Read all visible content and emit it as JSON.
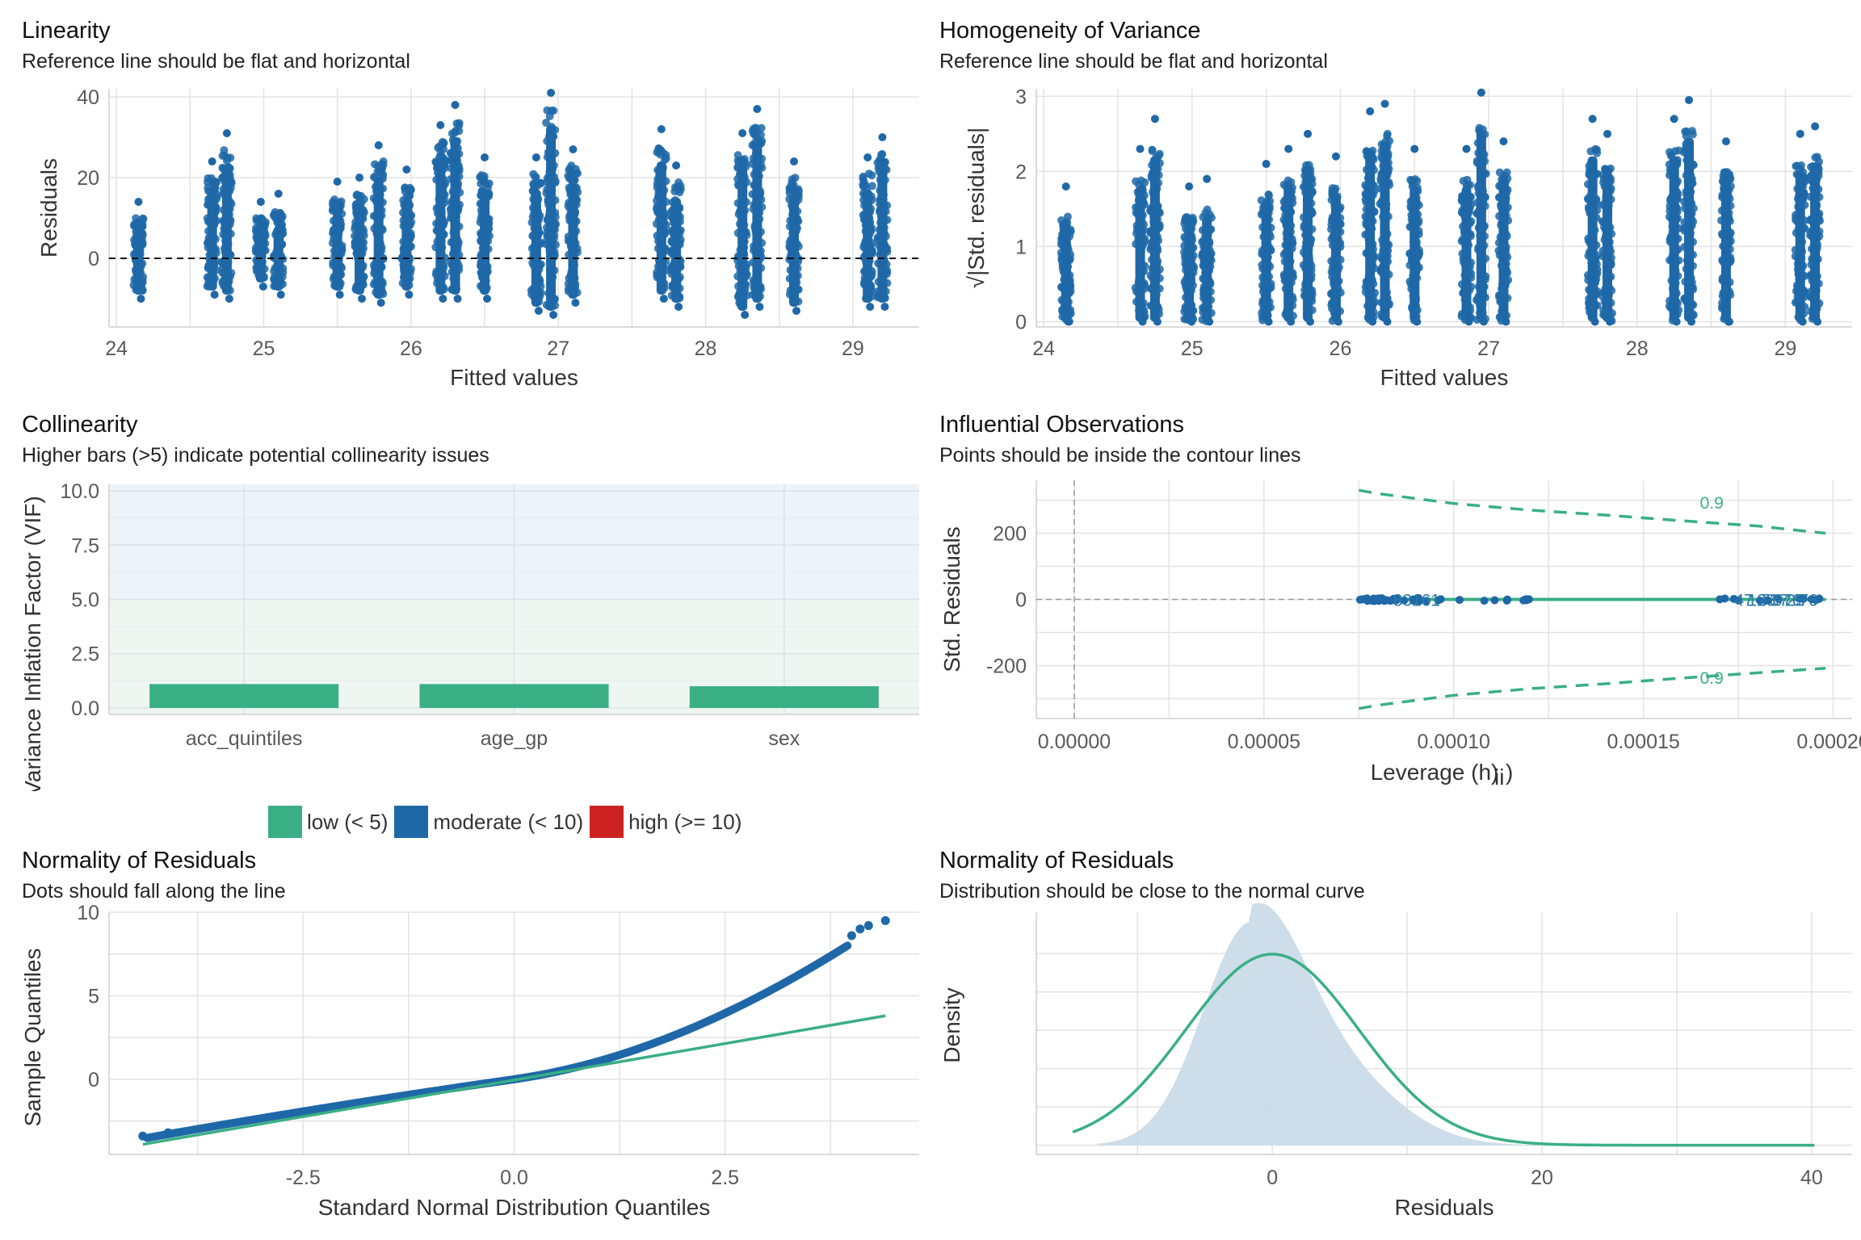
{
  "panels": {
    "linearity": {
      "title": "Linearity",
      "subtitle": "Reference line should be flat and horizontal"
    },
    "homogeneity": {
      "title": "Homogeneity of Variance",
      "subtitle": "Reference line should be flat and horizontal"
    },
    "collinearity": {
      "title": "Collinearity",
      "subtitle": "Higher bars (>5) indicate potential collinearity issues"
    },
    "influential": {
      "title": "Influential Observations",
      "subtitle": "Points should be inside the contour lines"
    },
    "qq": {
      "title": "Normality of Residuals",
      "subtitle": "Dots should fall along the line"
    },
    "density": {
      "title": "Normality of Residuals",
      "subtitle": "Distribution should be close to the normal curve"
    }
  },
  "colors": {
    "points": "#1f68a8",
    "green": "#3aaf85",
    "red": "#cc2222",
    "vif_bg": "#eef3f8",
    "density_fill": "#c9d9e8"
  },
  "legend": {
    "items": [
      {
        "label": "low (< 5)",
        "color": "#3aaf85"
      },
      {
        "label": "moderate (< 10)",
        "color": "#1f68a8"
      },
      {
        "label": "high (>= 10)",
        "color": "#cc2222"
      }
    ]
  },
  "chart_data": [
    {
      "id": "linearity",
      "type": "scatter",
      "xlabel": "Fitted values",
      "ylabel": "Residuals",
      "xlim": [
        23.95,
        29.45
      ],
      "ylim": [
        -17,
        42
      ],
      "xticks": [
        "24",
        "25",
        "26",
        "27",
        "28",
        "29"
      ],
      "yticks": [
        "0",
        "20",
        "40"
      ],
      "reference_line": {
        "y": 0,
        "style": "dashed"
      },
      "columns": [
        {
          "x": 24.15,
          "lo": -10,
          "hi": 14
        },
        {
          "x": 24.65,
          "lo": -9,
          "hi": 24
        },
        {
          "x": 24.75,
          "lo": -10,
          "hi": 31
        },
        {
          "x": 24.98,
          "lo": -7,
          "hi": 14
        },
        {
          "x": 25.1,
          "lo": -9,
          "hi": 16
        },
        {
          "x": 25.5,
          "lo": -9,
          "hi": 19
        },
        {
          "x": 25.65,
          "lo": -10,
          "hi": 20
        },
        {
          "x": 25.78,
          "lo": -11,
          "hi": 28
        },
        {
          "x": 25.97,
          "lo": -9,
          "hi": 22
        },
        {
          "x": 26.2,
          "lo": -10,
          "hi": 33
        },
        {
          "x": 26.3,
          "lo": -10,
          "hi": 38
        },
        {
          "x": 26.5,
          "lo": -10,
          "hi": 25
        },
        {
          "x": 26.85,
          "lo": -13,
          "hi": 25
        },
        {
          "x": 26.95,
          "lo": -14,
          "hi": 41
        },
        {
          "x": 27.1,
          "lo": -11,
          "hi": 27
        },
        {
          "x": 27.7,
          "lo": -10,
          "hi": 32
        },
        {
          "x": 27.8,
          "lo": -12,
          "hi": 23
        },
        {
          "x": 28.25,
          "lo": -14,
          "hi": 31
        },
        {
          "x": 28.35,
          "lo": -12,
          "hi": 37
        },
        {
          "x": 28.6,
          "lo": -13,
          "hi": 24
        },
        {
          "x": 29.1,
          "lo": -12,
          "hi": 25
        },
        {
          "x": 29.2,
          "lo": -12,
          "hi": 30
        }
      ]
    },
    {
      "id": "homogeneity",
      "type": "scatter",
      "xlabel": "Fitted values",
      "ylabel": "√|Std. residuals|",
      "xlim": [
        23.95,
        29.45
      ],
      "ylim": [
        -0.07,
        3.1
      ],
      "xticks": [
        "24",
        "25",
        "26",
        "27",
        "28",
        "29"
      ],
      "yticks": [
        "0",
        "1",
        "2",
        "3"
      ],
      "columns": [
        {
          "x": 24.15,
          "lo": 0,
          "hi": 1.8
        },
        {
          "x": 24.65,
          "lo": 0,
          "hi": 2.3
        },
        {
          "x": 24.75,
          "lo": 0,
          "hi": 2.7
        },
        {
          "x": 24.98,
          "lo": 0,
          "hi": 1.8
        },
        {
          "x": 25.1,
          "lo": 0,
          "hi": 1.9
        },
        {
          "x": 25.5,
          "lo": 0,
          "hi": 2.1
        },
        {
          "x": 25.65,
          "lo": 0,
          "hi": 2.3
        },
        {
          "x": 25.78,
          "lo": 0,
          "hi": 2.5
        },
        {
          "x": 25.97,
          "lo": 0,
          "hi": 2.2
        },
        {
          "x": 26.2,
          "lo": 0,
          "hi": 2.8
        },
        {
          "x": 26.3,
          "lo": 0,
          "hi": 2.9
        },
        {
          "x": 26.5,
          "lo": 0,
          "hi": 2.3
        },
        {
          "x": 26.85,
          "lo": 0,
          "hi": 2.3
        },
        {
          "x": 26.95,
          "lo": 0,
          "hi": 3.05
        },
        {
          "x": 27.1,
          "lo": 0,
          "hi": 2.4
        },
        {
          "x": 27.7,
          "lo": 0,
          "hi": 2.7
        },
        {
          "x": 27.8,
          "lo": 0,
          "hi": 2.5
        },
        {
          "x": 28.25,
          "lo": 0,
          "hi": 2.7
        },
        {
          "x": 28.35,
          "lo": 0,
          "hi": 2.95
        },
        {
          "x": 28.6,
          "lo": 0,
          "hi": 2.4
        },
        {
          "x": 29.1,
          "lo": 0,
          "hi": 2.5
        },
        {
          "x": 29.2,
          "lo": 0,
          "hi": 2.6
        }
      ]
    },
    {
      "id": "collinearity",
      "type": "bar",
      "xlabel": "",
      "ylabel": "Variance Inflation Factor (VIF)",
      "ylim": [
        -0.3,
        10.3
      ],
      "yticks": [
        "0.0",
        "2.5",
        "5.0",
        "7.5",
        "10.0"
      ],
      "categories": [
        "acc_quintiles",
        "age_gp",
        "sex"
      ],
      "values": [
        1.1,
        1.1,
        1.0
      ]
    },
    {
      "id": "influential",
      "type": "scatter",
      "xlabel": "Leverage (hii)",
      "ylabel": "Std. Residuals",
      "xlim": [
        -1e-05,
        0.000205
      ],
      "ylim": [
        -360,
        360
      ],
      "xticks": [
        "0.00000",
        "0.00005",
        "0.00010",
        "0.00015",
        "0.00020"
      ],
      "yticks": [
        "-200",
        "0",
        "200"
      ],
      "contour_label": "0.9",
      "contour_upper": [
        [
          7.5e-05,
          330
        ],
        [
          8e-05,
          320
        ],
        [
          9e-05,
          305
        ],
        [
          0.0001,
          290
        ],
        [
          0.00012,
          270
        ],
        [
          0.00014,
          255
        ],
        [
          0.00016,
          238
        ],
        [
          0.00018,
          222
        ],
        [
          0.000198,
          200
        ]
      ],
      "contour_lower": [
        [
          7.5e-05,
          -330
        ],
        [
          8e-05,
          -320
        ],
        [
          9e-05,
          -305
        ],
        [
          0.0001,
          -290
        ],
        [
          0.00012,
          -270
        ],
        [
          0.00014,
          -255
        ],
        [
          0.00016,
          -238
        ],
        [
          0.00018,
          -222
        ],
        [
          0.000198,
          -208
        ]
      ],
      "point_labels": [
        "83161",
        "47",
        "123",
        "737",
        "976",
        "25",
        "76"
      ]
    },
    {
      "id": "qq",
      "type": "scatter",
      "xlabel": "Standard Normal Distribution Quantiles",
      "ylabel": "Sample Quantiles",
      "xlim": [
        -4.8,
        4.8
      ],
      "ylim": [
        -4.5,
        10
      ],
      "xticks": [
        "-2.5",
        "0.0",
        "2.5"
      ],
      "yticks": [
        "0",
        "5",
        "10"
      ],
      "reference_line": [
        [
          -4.4,
          -3.9
        ],
        [
          4.4,
          3.8
        ]
      ],
      "outlier_points": [
        [
          4.0,
          8.6
        ],
        [
          4.1,
          9.0
        ],
        [
          4.2,
          9.2
        ],
        [
          4.4,
          9.5
        ],
        [
          -4.4,
          -3.4
        ],
        [
          -4.1,
          -3.2
        ]
      ]
    },
    {
      "id": "density",
      "type": "area",
      "xlabel": "Residuals",
      "ylabel": "Density",
      "xlim": [
        -17.5,
        43
      ],
      "ylim": [
        -0.003,
        0.076
      ],
      "xticks": [
        "0",
        "20",
        "40"
      ],
      "normal_curve": {
        "mean": 0,
        "sd": 6.4
      }
    }
  ]
}
